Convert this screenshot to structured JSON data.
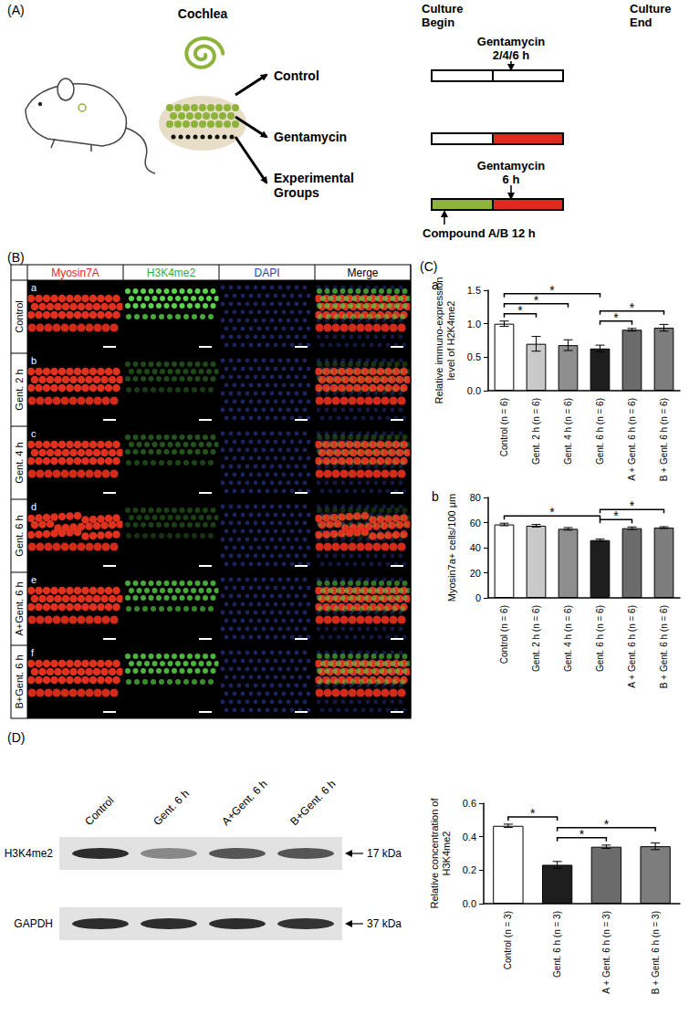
{
  "panel_labels": [
    "(A)",
    "(B)",
    "(C)",
    "(D)"
  ],
  "schematic": {
    "organ": "Cochlea",
    "groups": [
      "Control",
      "Gentamycin",
      "Experimental Groups"
    ],
    "culture_begin": "Culture Begin",
    "culture_end": "Culture End",
    "treatment_control": "Gentamycin 2/4/6 h",
    "treatment_experimental": "Gentamycin 6 h",
    "pretreatment": "Compound A/B 12 h",
    "colors": {
      "cochlea": "#8db33a",
      "gentamycin": "#e02a1f"
    }
  },
  "images": {
    "columns": [
      {
        "text": "Myosin7A",
        "color": "#e8231f"
      },
      {
        "text": "H3K4me2",
        "color": "#3aa935"
      },
      {
        "text": "DAPI",
        "color": "#2b3fa0"
      },
      {
        "text": "Merge",
        "color": "#000000"
      }
    ],
    "rows": [
      "Control",
      "Gent. 2 h",
      "Gent. 4 h",
      "Gent. 6 h",
      "A+Gent. 6 h",
      "B+Gent. 6 h"
    ],
    "row_letters": [
      "a",
      "b",
      "c",
      "d",
      "e",
      "f"
    ]
  },
  "blot": {
    "lanes": [
      "Control",
      "Gent. 6 h",
      "A+Gent. 6 h",
      "B+Gent. 6 h"
    ],
    "bands": [
      {
        "name": "H3K4me2",
        "size": "17 kDa"
      },
      {
        "name": "GAPDH",
        "size": "37 kDa"
      }
    ]
  },
  "chart_data": [
    {
      "type": "bar",
      "title": "a",
      "ylabel": "Relative immuno-expression level of H2K4me2",
      "categories": [
        "Control (n = 6)",
        "Gent. 2 h (n = 6)",
        "Gent. 4 h (n = 6)",
        "Gent. 6 h (n = 6)",
        "A + Gent. 6 h (n = 6)",
        "B + Gent. 6 h (n = 6)"
      ],
      "values": [
        1.0,
        0.7,
        0.68,
        0.63,
        0.91,
        0.94
      ],
      "errors": [
        0.04,
        0.11,
        0.08,
        0.05,
        0.02,
        0.05
      ],
      "colors": [
        "#ffffff",
        "#c9c9c9",
        "#8e8e8e",
        "#1e1e1e",
        "#6b6b6b",
        "#7d7d7d"
      ],
      "ylim": [
        0,
        1.5
      ],
      "yticks": [
        {
          "value": 0,
          "label": "0.0"
        },
        {
          "value": 0.5,
          "label": "0.5"
        },
        {
          "value": 1,
          "label": "1.0"
        },
        {
          "value": 1.5,
          "label": "1.5"
        }
      ],
      "grid": false,
      "comparisons": [
        {
          "pair": [
            "Control (n = 6)",
            "Gent. 2 h (n = 6)"
          ],
          "label": "*"
        },
        {
          "pair": [
            "Control (n = 6)",
            "Gent. 4 h (n = 6)"
          ],
          "label": "*"
        },
        {
          "pair": [
            "Control (n = 6)",
            "Gent. 6 h (n = 6)"
          ],
          "label": "*"
        },
        {
          "pair": [
            "Gent. 6 h (n = 6)",
            "A + Gent. 6 h (n = 6)"
          ],
          "label": "*"
        },
        {
          "pair": [
            "Gent. 6 h (n = 6)",
            "B + Gent. 6 h (n = 6)"
          ],
          "label": "*"
        }
      ]
    },
    {
      "type": "bar",
      "title": "b",
      "ylabel": "Myosin7a+ cells/100 μm",
      "categories": [
        "Control (n = 6)",
        "Gent. 2 h (n = 6)",
        "Gent. 4 h (n = 6)",
        "Gent. 6 h (n = 6)",
        "A + Gent. 6 h (n = 6)",
        "B + Gent. 6 h (n = 6)"
      ],
      "values": [
        58.5,
        57.5,
        55,
        46,
        55.5,
        56
      ],
      "errors": [
        1,
        1,
        1,
        0.8,
        1,
        0.7
      ],
      "colors": [
        "#ffffff",
        "#c9c9c9",
        "#8e8e8e",
        "#1e1e1e",
        "#6b6b6b",
        "#7d7d7d"
      ],
      "ylim": [
        0,
        80
      ],
      "yticks": [
        0,
        20,
        40,
        60,
        80
      ],
      "grid": false,
      "comparisons": [
        {
          "pair": [
            "Control (n = 6)",
            "Gent. 6 h (n = 6)"
          ],
          "label": "*"
        },
        {
          "pair": [
            "Gent. 6 h (n = 6)",
            "A + Gent. 6 h (n = 6)"
          ],
          "label": "*"
        },
        {
          "pair": [
            "Gent. 6 h (n = 6)",
            "B + Gent. 6 h (n = 6)"
          ],
          "label": "*"
        }
      ]
    },
    {
      "type": "bar",
      "ylabel": "Relative concentration of H3K4me2",
      "categories": [
        "Control (n = 3)",
        "Gent. 6 h (n = 3)",
        "A + Gent. 6 h (n = 3)",
        "B + Gent. 6 h (n = 3)"
      ],
      "values": [
        0.465,
        0.232,
        0.34,
        0.343
      ],
      "errors": [
        0.01,
        0.02,
        0.01,
        0.02
      ],
      "colors": [
        "#ffffff",
        "#1e1e1e",
        "#6b6b6b",
        "#7d7d7d"
      ],
      "ylim": [
        0,
        0.6
      ],
      "yticks": [
        {
          "value": 0,
          "label": "0.0"
        },
        {
          "value": 0.2,
          "label": "0.2"
        },
        {
          "value": 0.4,
          "label": "0.4"
        },
        {
          "value": 0.6,
          "label": "0.6"
        }
      ],
      "grid": false,
      "comparisons": [
        {
          "pair": [
            "Control (n = 3)",
            "Gent. 6 h (n = 3)"
          ],
          "label": "*"
        },
        {
          "pair": [
            "Gent. 6 h (n = 3)",
            "A + Gent. 6 h (n = 3)"
          ],
          "label": "*"
        },
        {
          "pair": [
            "Gent. 6 h (n = 3)",
            "B + Gent. 6 h (n = 3)"
          ],
          "label": "*"
        }
      ]
    }
  ]
}
